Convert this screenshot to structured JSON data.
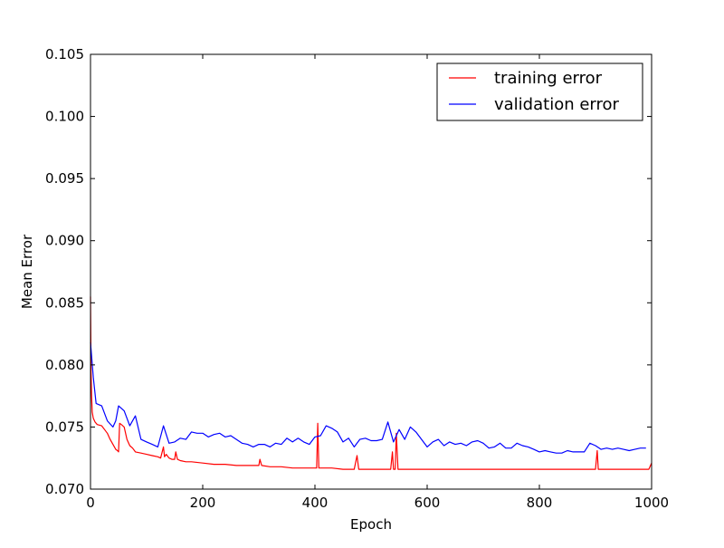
{
  "chart_data": {
    "type": "line",
    "title": "",
    "xlabel": "Epoch",
    "ylabel": "Mean Error",
    "xlim": [
      0,
      1000
    ],
    "ylim": [
      0.07,
      0.105
    ],
    "x_ticks": [
      0,
      200,
      400,
      600,
      800,
      1000
    ],
    "x_tick_labels": [
      "0",
      "200",
      "400",
      "600",
      "800",
      "1000"
    ],
    "y_ticks": [
      0.07,
      0.075,
      0.08,
      0.085,
      0.09,
      0.095,
      0.1,
      0.105
    ],
    "y_tick_labels": [
      "0.070",
      "0.075",
      "0.080",
      "0.085",
      "0.090",
      "0.095",
      "0.100",
      "0.105"
    ],
    "grid": false,
    "legend_position": "top-right",
    "series": [
      {
        "name": "training error",
        "color": "#ff0000",
        "x": [
          0,
          1,
          2,
          3,
          5,
          8,
          12,
          20,
          25,
          30,
          35,
          40,
          45,
          48,
          50,
          52,
          55,
          60,
          65,
          70,
          75,
          80,
          90,
          100,
          110,
          120,
          125,
          130,
          132,
          135,
          140,
          145,
          150,
          152,
          155,
          160,
          170,
          180,
          200,
          220,
          240,
          260,
          280,
          300,
          302,
          305,
          320,
          340,
          360,
          380,
          400,
          403,
          405,
          407,
          410,
          430,
          450,
          470,
          475,
          478,
          480,
          500,
          520,
          535,
          538,
          540,
          543,
          545,
          548,
          550,
          552,
          555,
          580,
          600,
          650,
          700,
          750,
          800,
          850,
          900,
          903,
          905,
          907,
          910,
          950,
          980,
          990,
          995,
          1000
        ],
        "y": [
          0.0855,
          0.0795,
          0.0775,
          0.0762,
          0.0757,
          0.0754,
          0.0752,
          0.0751,
          0.0748,
          0.0745,
          0.074,
          0.0736,
          0.0732,
          0.0731,
          0.073,
          0.0753,
          0.0752,
          0.075,
          0.074,
          0.0735,
          0.0733,
          0.073,
          0.0729,
          0.0728,
          0.0727,
          0.0726,
          0.0725,
          0.0734,
          0.0726,
          0.0728,
          0.0725,
          0.0724,
          0.0724,
          0.073,
          0.0724,
          0.0723,
          0.0722,
          0.0722,
          0.0721,
          0.072,
          0.072,
          0.0719,
          0.0719,
          0.0719,
          0.0724,
          0.0719,
          0.0718,
          0.0718,
          0.0717,
          0.0717,
          0.0717,
          0.0717,
          0.0753,
          0.0717,
          0.0717,
          0.0717,
          0.0716,
          0.0716,
          0.0727,
          0.0716,
          0.0716,
          0.0716,
          0.0716,
          0.0716,
          0.073,
          0.0716,
          0.0716,
          0.0745,
          0.0716,
          0.0716,
          0.0716,
          0.0716,
          0.0716,
          0.0716,
          0.0716,
          0.0716,
          0.0716,
          0.0716,
          0.0716,
          0.0716,
          0.0731,
          0.0716,
          0.0716,
          0.0716,
          0.0716,
          0.0716,
          0.0716,
          0.0716,
          0.0721
        ]
      },
      {
        "name": "validation error",
        "color": "#0000ff",
        "x": [
          0,
          5,
          10,
          20,
          30,
          40,
          45,
          50,
          60,
          70,
          80,
          90,
          100,
          110,
          120,
          130,
          140,
          150,
          160,
          170,
          180,
          190,
          200,
          210,
          220,
          230,
          240,
          250,
          260,
          270,
          280,
          290,
          300,
          310,
          320,
          330,
          340,
          350,
          360,
          370,
          380,
          390,
          400,
          410,
          420,
          430,
          440,
          450,
          460,
          470,
          480,
          490,
          500,
          510,
          520,
          530,
          540,
          550,
          560,
          570,
          580,
          590,
          600,
          610,
          620,
          630,
          640,
          650,
          660,
          670,
          680,
          690,
          700,
          710,
          720,
          730,
          740,
          750,
          760,
          770,
          780,
          790,
          800,
          810,
          820,
          830,
          840,
          850,
          860,
          870,
          880,
          890,
          900,
          910,
          920,
          930,
          940,
          950,
          960,
          970,
          980,
          990
        ],
        "y": [
          0.0818,
          0.079,
          0.0769,
          0.0767,
          0.0755,
          0.075,
          0.0755,
          0.0767,
          0.0763,
          0.0751,
          0.0759,
          0.074,
          0.0738,
          0.0736,
          0.0734,
          0.0751,
          0.0737,
          0.0738,
          0.0741,
          0.074,
          0.0746,
          0.0745,
          0.0745,
          0.0742,
          0.0744,
          0.0745,
          0.0742,
          0.0743,
          0.074,
          0.0737,
          0.0736,
          0.0734,
          0.0736,
          0.0736,
          0.0734,
          0.0737,
          0.0736,
          0.0741,
          0.0738,
          0.0741,
          0.0738,
          0.0736,
          0.0742,
          0.0743,
          0.0751,
          0.0749,
          0.0746,
          0.0738,
          0.0741,
          0.0734,
          0.074,
          0.0741,
          0.0739,
          0.0739,
          0.074,
          0.0754,
          0.0738,
          0.0748,
          0.074,
          0.075,
          0.0746,
          0.074,
          0.0734,
          0.0738,
          0.074,
          0.0735,
          0.0738,
          0.0736,
          0.0737,
          0.0735,
          0.0738,
          0.0739,
          0.0737,
          0.0733,
          0.0734,
          0.0737,
          0.0733,
          0.0733,
          0.0737,
          0.0735,
          0.0734,
          0.0732,
          0.073,
          0.0731,
          0.073,
          0.0729,
          0.0729,
          0.0731,
          0.073,
          0.073,
          0.073,
          0.0737,
          0.0735,
          0.0732,
          0.0733,
          0.0732,
          0.0733,
          0.0732,
          0.0731,
          0.0732,
          0.0733,
          0.0733
        ]
      }
    ]
  }
}
